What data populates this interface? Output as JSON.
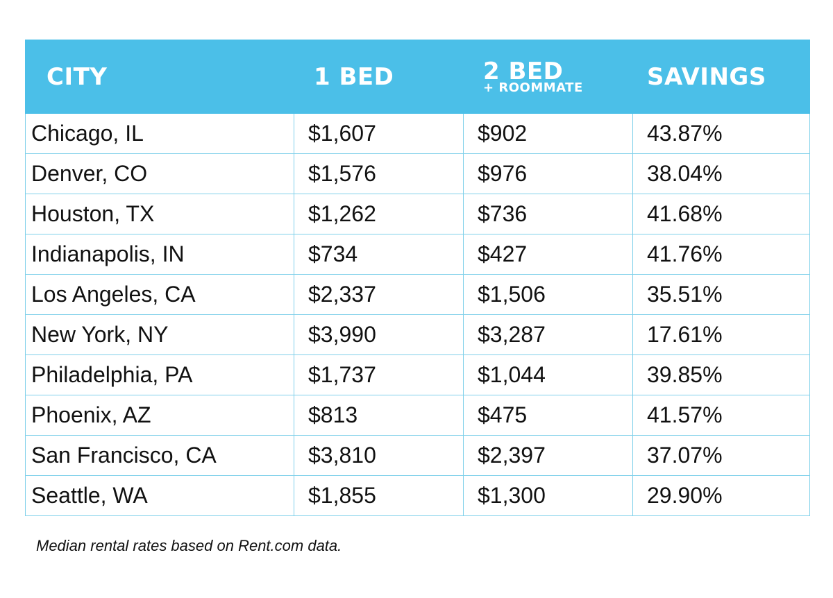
{
  "chart_data": {
    "type": "table",
    "columns": [
      "CITY",
      "1 BED",
      "2 BED",
      "+ ROOMMATE",
      "SAVINGS"
    ],
    "header": {
      "city": "CITY",
      "one_bed": "1 BED",
      "two_bed": "2 BED",
      "two_bed_sub": "+ ROOMMATE",
      "savings": "SAVINGS"
    },
    "rows": [
      [
        "Chicago, IL",
        "$1,607",
        "$902",
        "43.87%"
      ],
      [
        "Denver, CO",
        "$1,576",
        "$976",
        "38.04%"
      ],
      [
        "Houston, TX",
        "$1,262",
        "$736",
        "41.68%"
      ],
      [
        "Indianapolis, IN",
        "$734",
        "$427",
        "41.76%"
      ],
      [
        "Los Angeles, CA",
        "$2,337",
        "$1,506",
        "35.51%"
      ],
      [
        "New York, NY",
        "$3,990",
        "$3,287",
        "17.61%"
      ],
      [
        "Philadelphia, PA",
        "$1,737",
        "$1,044",
        "39.85%"
      ],
      [
        "Phoenix, AZ",
        "$813",
        "$475",
        "41.57%"
      ],
      [
        "San Francisco, CA",
        "$3,810",
        "$2,397",
        "37.07%"
      ],
      [
        "Seattle, WA",
        "$1,855",
        "$1,300",
        "29.90%"
      ]
    ],
    "caption": "Median rental rates based on Rent.com data.",
    "colors": {
      "header": "#4bbfe8",
      "border": "#7fd0ea"
    }
  }
}
